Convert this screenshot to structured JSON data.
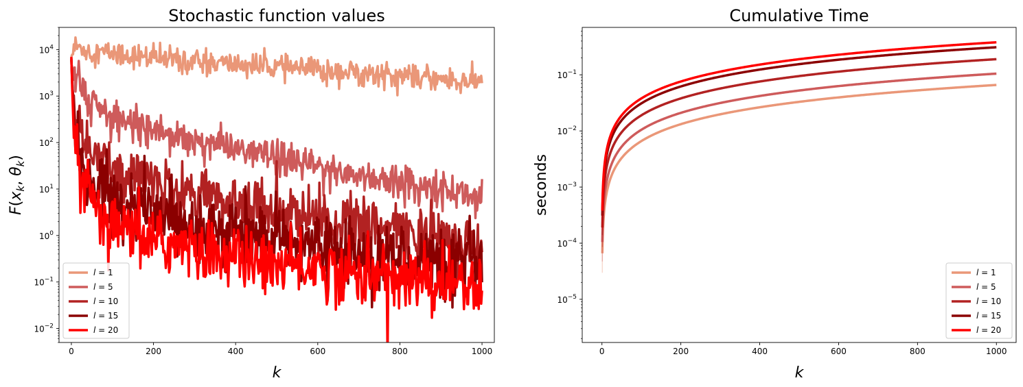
{
  "colors": {
    "l1": "#EA9778",
    "l5": "#CE5B5B",
    "l10": "#B22222",
    "l15": "#8B0000",
    "l20": "#FF0000"
  },
  "chart_data": [
    {
      "type": "line",
      "title": "Stochastic function values",
      "xlabel": "k",
      "ylabel": "F(x_k, θ_k)",
      "y_scale": "log",
      "xlim": [
        -30,
        1030
      ],
      "ylim": [
        0.005,
        30000
      ],
      "x_ticks": [
        0,
        200,
        400,
        600,
        800,
        1000
      ],
      "x_tick_labels": [
        "0",
        "200",
        "400",
        "600",
        "800",
        "1000"
      ],
      "y_ticks": [
        0.01,
        0.1,
        1,
        10,
        100,
        1000,
        10000
      ],
      "y_tick_labels": [
        {
          "base": "10",
          "exp": "−2"
        },
        {
          "base": "10",
          "exp": "−1"
        },
        {
          "base": "10",
          "exp": "0"
        },
        {
          "base": "10",
          "exp": "1"
        },
        {
          "base": "10",
          "exp": "2"
        },
        {
          "base": "10",
          "exp": "3"
        },
        {
          "base": "10",
          "exp": "4"
        }
      ],
      "legend_position": "lower-left",
      "series": [
        {
          "name": "l = 1",
          "color_key": "l1",
          "x": [
            0,
            10,
            50,
            100,
            200,
            300,
            400,
            500,
            600,
            700,
            800,
            900,
            1000
          ],
          "y": [
            7000,
            12000,
            9000,
            8500,
            6500,
            5500,
            4800,
            4200,
            3600,
            3200,
            2800,
            2300,
            2000
          ],
          "noise": 0.13
        },
        {
          "name": "l = 5",
          "color_key": "l5",
          "x": [
            0,
            5,
            20,
            50,
            100,
            200,
            300,
            400,
            500,
            600,
            700,
            800,
            900,
            1000
          ],
          "y": [
            5000,
            3000,
            1500,
            700,
            350,
            200,
            120,
            75,
            45,
            30,
            20,
            14,
            10,
            7
          ],
          "noise": 0.18
        },
        {
          "name": "l = 10",
          "color_key": "l10",
          "x": [
            0,
            5,
            20,
            50,
            100,
            200,
            300,
            400,
            500,
            600,
            700,
            800,
            900,
            1000
          ],
          "y": [
            6000,
            500,
            150,
            50,
            25,
            12,
            8,
            5,
            3.5,
            2.5,
            1.8,
            1.2,
            0.9,
            0.6
          ],
          "noise": 0.3
        },
        {
          "name": "l = 15",
          "color_key": "l15",
          "x": [
            0,
            5,
            20,
            50,
            100,
            200,
            300,
            400,
            500,
            600,
            700,
            800,
            900,
            1000
          ],
          "y": [
            6500,
            300,
            60,
            15,
            6,
            3,
            2,
            1.2,
            0.8,
            0.6,
            0.4,
            0.35,
            0.3,
            0.25
          ],
          "noise": 0.35
        },
        {
          "name": "l = 20",
          "color_key": "l20",
          "x": [
            0,
            5,
            20,
            50,
            100,
            200,
            300,
            400,
            500,
            600,
            700,
            800,
            900,
            1000
          ],
          "y": [
            7000,
            150,
            25,
            5,
            1.5,
            0.8,
            0.5,
            0.35,
            0.25,
            0.2,
            0.15,
            0.12,
            0.1,
            0.09
          ],
          "noise": 0.33
        }
      ]
    },
    {
      "type": "line",
      "title": "Cumulative Time",
      "xlabel": "k",
      "ylabel": "seconds",
      "y_scale": "log",
      "xlim": [
        -50,
        1050
      ],
      "ylim": [
        1.7e-06,
        0.7
      ],
      "x_ticks": [
        0,
        200,
        400,
        600,
        800,
        1000
      ],
      "x_tick_labels": [
        "0",
        "200",
        "400",
        "600",
        "800",
        "1000"
      ],
      "y_ticks": [
        1e-05,
        0.0001,
        0.001,
        0.01,
        0.1
      ],
      "y_tick_labels": [
        {
          "base": "10",
          "exp": "−5"
        },
        {
          "base": "10",
          "exp": "−4"
        },
        {
          "base": "10",
          "exp": "−3"
        },
        {
          "base": "10",
          "exp": "−2"
        },
        {
          "base": "10",
          "exp": "−1"
        }
      ],
      "legend_position": "lower-right",
      "series": [
        {
          "name": "l = 1",
          "color_key": "l1",
          "x": [
            1,
            1000
          ],
          "y": [
            6.6e-06,
            0.066
          ],
          "growth": "linear"
        },
        {
          "name": "l = 5",
          "color_key": "l5",
          "x": [
            1,
            1000
          ],
          "y": [
            1.05e-05,
            0.105
          ],
          "growth": "linear"
        },
        {
          "name": "l = 10",
          "color_key": "l10",
          "x": [
            1,
            1000
          ],
          "y": [
            1.9e-05,
            0.19
          ],
          "growth": "linear"
        },
        {
          "name": "l = 15",
          "color_key": "l15",
          "x": [
            1,
            1000
          ],
          "y": [
            3.1e-05,
            0.31
          ],
          "growth": "linear"
        },
        {
          "name": "l = 20",
          "color_key": "l20",
          "x": [
            1,
            1000
          ],
          "y": [
            3.8e-05,
            0.38
          ],
          "growth": "linear"
        }
      ]
    }
  ]
}
